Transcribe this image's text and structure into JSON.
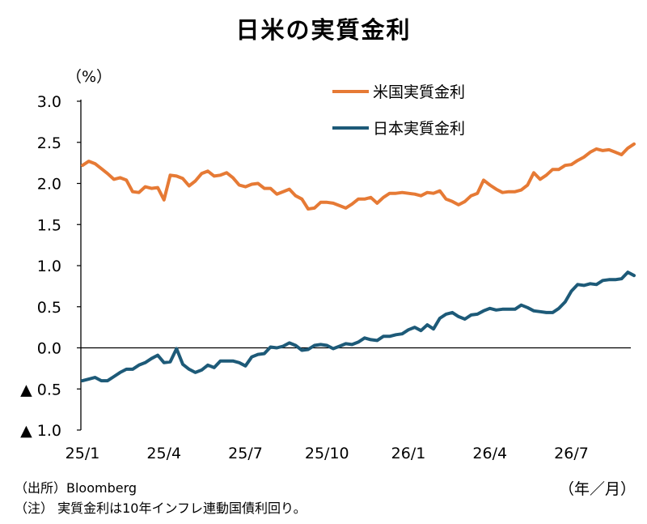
{
  "chart_data": {
    "type": "line",
    "title": "日米の実質金利",
    "ylabel": "（%）",
    "xlabel": "（年／月）",
    "ylim": [
      -1.0,
      3.0
    ],
    "yticks": [
      3.0,
      2.5,
      2.0,
      1.5,
      1.0,
      0.5,
      0.0,
      -0.5,
      -1.0
    ],
    "ytick_labels": [
      "3.0",
      "2.5",
      "2.0",
      "1.5",
      "1.0",
      "0.5",
      "0.0",
      "▲ 0.5",
      "▲ 1.0"
    ],
    "xtick_labels": [
      "25/1",
      "25/4",
      "25/7",
      "25/10",
      "26/1",
      "26/4",
      "26/7"
    ],
    "xtick_weeks": [
      0,
      13,
      26,
      39,
      52,
      65,
      78
    ],
    "n_weeks": 89,
    "legend_position": "top-right",
    "grid": false,
    "series": [
      {
        "name": "米国実質金利",
        "color": "#E67A35",
        "values": [
          2.22,
          2.27,
          2.24,
          2.18,
          2.12,
          2.05,
          2.07,
          2.04,
          1.9,
          1.89,
          1.96,
          1.94,
          1.95,
          1.8,
          2.1,
          2.09,
          2.06,
          1.97,
          2.03,
          2.12,
          2.15,
          2.09,
          2.1,
          2.13,
          2.07,
          1.98,
          1.96,
          1.99,
          2.0,
          1.94,
          1.94,
          1.87,
          1.9,
          1.93,
          1.85,
          1.81,
          1.69,
          1.7,
          1.77,
          1.77,
          1.76,
          1.73,
          1.7,
          1.75,
          1.81,
          1.81,
          1.83,
          1.76,
          1.83,
          1.88,
          1.88,
          1.89,
          1.88,
          1.87,
          1.85,
          1.89,
          1.88,
          1.91,
          1.81,
          1.78,
          1.74,
          1.78,
          1.85,
          1.88,
          2.04,
          1.98,
          1.93,
          1.89,
          1.9,
          1.9,
          1.92,
          1.98,
          2.13,
          2.05,
          2.1,
          2.17,
          2.17,
          2.22,
          2.23,
          2.28,
          2.32,
          2.38,
          2.42,
          2.4,
          2.41,
          2.38,
          2.35,
          2.43,
          2.48
        ]
      },
      {
        "name": "日本実質金利",
        "color": "#1D5A78",
        "values": [
          -0.4,
          -0.38,
          -0.36,
          -0.4,
          -0.4,
          -0.35,
          -0.3,
          -0.26,
          -0.26,
          -0.21,
          -0.18,
          -0.13,
          -0.09,
          -0.18,
          -0.17,
          -0.01,
          -0.2,
          -0.26,
          -0.3,
          -0.27,
          -0.21,
          -0.24,
          -0.16,
          -0.16,
          -0.16,
          -0.18,
          -0.22,
          -0.11,
          -0.08,
          -0.07,
          0.01,
          0.0,
          0.02,
          0.06,
          0.03,
          -0.03,
          -0.02,
          0.03,
          0.04,
          0.03,
          -0.01,
          0.02,
          0.05,
          0.04,
          0.07,
          0.12,
          0.1,
          0.09,
          0.14,
          0.14,
          0.16,
          0.17,
          0.22,
          0.25,
          0.21,
          0.28,
          0.23,
          0.36,
          0.41,
          0.43,
          0.38,
          0.35,
          0.4,
          0.41,
          0.45,
          0.48,
          0.46,
          0.47,
          0.47,
          0.47,
          0.52,
          0.49,
          0.45,
          0.44,
          0.43,
          0.43,
          0.48,
          0.56,
          0.69,
          0.77,
          0.76,
          0.78,
          0.77,
          0.82,
          0.83,
          0.83,
          0.84,
          0.92,
          0.88
        ]
      }
    ]
  },
  "footnotes": {
    "source": "（出所）Bloomberg",
    "note": "（注） 実質金利は10年インフレ連動国債利回り。"
  }
}
